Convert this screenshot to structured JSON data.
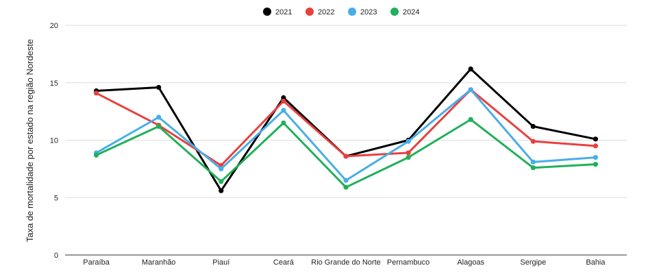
{
  "chart_data": {
    "type": "line",
    "title": "",
    "xlabel": "",
    "ylabel": "Taxa de mortalidade por estado na região Nordeste",
    "ylim": [
      0,
      20
    ],
    "yticks": [
      "0",
      "5",
      "10",
      "15",
      "20"
    ],
    "grid": true,
    "legend_position": "top",
    "categories": [
      "Paraíba",
      "Maranhão",
      "Piauí",
      "Ceará",
      "Rio Grande do Norte",
      "Pernambuco",
      "Alagoas",
      "Sergipe",
      "Bahia"
    ],
    "series": [
      {
        "name": "2021",
        "color": "#000000",
        "values": [
          14.3,
          14.6,
          5.6,
          13.7,
          8.6,
          10.0,
          16.2,
          11.2,
          10.1
        ]
      },
      {
        "name": "2022",
        "color": "#e8403f",
        "values": [
          14.1,
          11.3,
          7.8,
          13.4,
          8.6,
          8.9,
          14.4,
          9.9,
          9.5
        ]
      },
      {
        "name": "2023",
        "color": "#47aee8",
        "values": [
          8.9,
          12.0,
          7.5,
          12.6,
          6.5,
          9.9,
          14.4,
          8.1,
          8.5
        ]
      },
      {
        "name": "2024",
        "color": "#1fb05a",
        "values": [
          8.7,
          11.2,
          6.4,
          11.5,
          5.9,
          8.5,
          11.8,
          7.6,
          7.9
        ]
      }
    ]
  }
}
